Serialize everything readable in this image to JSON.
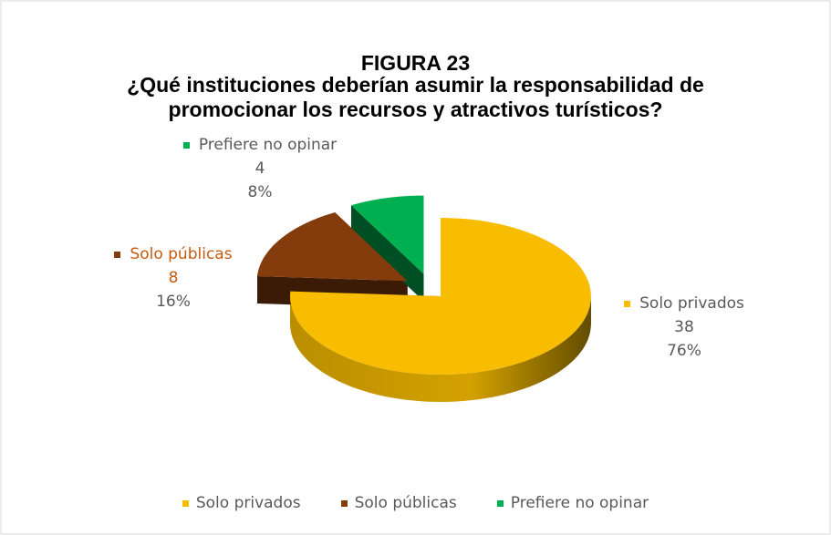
{
  "chart_data": {
    "type": "pie3d",
    "title": "FIGURA 23",
    "subtitle": "¿Qué instituciones deberían asumir la responsabilidad de promocionar los recursos y atractivos turísticos?",
    "categories": [
      "Solo privados",
      "Solo públicas",
      "Prefiere no opinar"
    ],
    "values": [
      38,
      8,
      4
    ],
    "percentages": [
      76,
      16,
      8
    ],
    "percentage_labels": [
      "76%",
      "16%",
      "8%"
    ],
    "colors": [
      "#f8bd00",
      "#843c0c",
      "#00b050"
    ],
    "legend": "bottom"
  }
}
